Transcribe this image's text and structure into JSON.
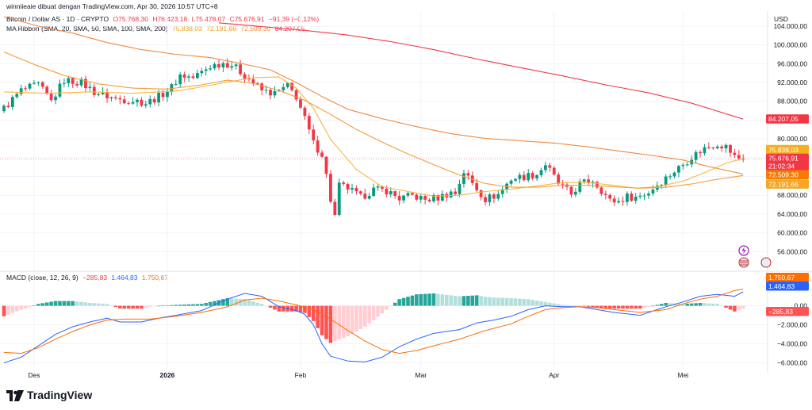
{
  "header": {
    "published": "winniieaie dibuat dengan TradingView.com, Apr 30, 2026 10:57 UTC+8",
    "symbol": "Bitcoin / Dollar AS · 1D · CRYPTO",
    "open": "O75.768,30",
    "high": "H76.423,18",
    "low": "L75.478,07",
    "close": "C75.676,91",
    "change": "−91,39 (−0,12%)",
    "ma_label": "MA Ribbon (SMA, 20, SMA, 50, SMA, 100, SMA, 200)",
    "ma_values": [
      "75.838,03",
      "72.191,66",
      "72.509,30",
      "84.207,05"
    ],
    "macd_label": "MACD (close, 12, 26, 9)",
    "macd_values": [
      "−285,83",
      "1.464,83",
      "1.750,67"
    ]
  },
  "axis_unit": "USD",
  "brand": "TradingView",
  "colors": {
    "up": "#089981",
    "down": "#f23645",
    "sma20": "#f5b642",
    "sma50": "#f59c34",
    "sma100": "#f0893e",
    "sma200": "#f23645",
    "macd": "#2962ff",
    "signal": "#ff6d00",
    "hist_up_strong": "#26a69a",
    "hist_up_weak": "#b2dfdb",
    "hist_down_strong": "#ff5252",
    "hist_down_weak": "#ffcdd2"
  },
  "chart_data": [
    {
      "type": "candlestick",
      "title": "Bitcoin / Dollar AS · 1D · CRYPTO",
      "x_labels": [
        "Des",
        "2026",
        "Feb",
        "Mar",
        "Apr",
        "Mei"
      ],
      "y_ticks": [
        56000,
        60000,
        64000,
        68000,
        72000,
        76000,
        80000,
        84000,
        88000,
        92000,
        96000,
        100000,
        104000
      ],
      "y_tick_labels": [
        "56.000,00",
        "60.000,00",
        "64.000,00",
        "68.000,00",
        "72.000,00",
        "76.000,00",
        "80.000,00",
        "84.000,00",
        "88.000,00",
        "92.000,00",
        "96.000,00",
        "100.000,00",
        "104.000,00"
      ],
      "ylim": [
        52500,
        107200
      ],
      "first_date": "2025-11-24",
      "last_date": "2026-04-30",
      "close_path": [
        [
          0,
          86500
        ],
        [
          4,
          90300
        ],
        [
          8,
          91500
        ],
        [
          11,
          88000
        ],
        [
          14,
          92500
        ],
        [
          18,
          92000
        ],
        [
          21,
          90000
        ],
        [
          26,
          88500
        ],
        [
          31,
          88100
        ],
        [
          33,
          87600
        ],
        [
          36,
          89000
        ],
        [
          39,
          91000
        ],
        [
          41,
          93600
        ],
        [
          44,
          93000
        ],
        [
          48,
          95500
        ],
        [
          51,
          96200
        ],
        [
          53,
          95800
        ],
        [
          57,
          92800
        ],
        [
          60,
          90300
        ],
        [
          63,
          89600
        ],
        [
          66,
          91200
        ],
        [
          68,
          89000
        ],
        [
          70,
          84200
        ],
        [
          72,
          79000
        ],
        [
          74,
          76800
        ],
        [
          75,
          72200
        ],
        [
          76,
          67000
        ],
        [
          77,
          63500
        ],
        [
          78,
          70000
        ],
        [
          80,
          69500
        ],
        [
          83,
          67500
        ],
        [
          86,
          69200
        ],
        [
          89,
          69000
        ],
        [
          92,
          67300
        ],
        [
          95,
          67900
        ],
        [
          98,
          67000
        ],
        [
          101,
          67500
        ],
        [
          104,
          68600
        ],
        [
          105,
          68400
        ],
        [
          107,
          73000
        ],
        [
          109,
          70500
        ],
        [
          112,
          67200
        ],
        [
          115,
          68200
        ],
        [
          118,
          71500
        ],
        [
          121,
          72000
        ],
        [
          124,
          72500
        ],
        [
          126,
          74600
        ],
        [
          129,
          70500
        ],
        [
          132,
          68200
        ],
        [
          134,
          70400
        ],
        [
          137,
          71200
        ],
        [
          139,
          69100
        ],
        [
          141,
          66800
        ],
        [
          143,
          66700
        ],
        [
          145,
          67700
        ],
        [
          147,
          67600
        ],
        [
          150,
          68600
        ],
        [
          152,
          70300
        ],
        [
          155,
          72400
        ],
        [
          158,
          74600
        ],
        [
          160,
          76200
        ],
        [
          163,
          78000
        ],
        [
          166,
          79000
        ],
        [
          168,
          78300
        ],
        [
          170,
          76200
        ],
        [
          172,
          75676.91
        ]
      ],
      "series": [
        {
          "name": "SMA 20",
          "last": 75838.03,
          "path": [
            [
              0,
              90000
            ],
            [
              10,
              89700
            ],
            [
              20,
              90000
            ],
            [
              30,
              89700
            ],
            [
              40,
              90200
            ],
            [
              45,
              90900
            ],
            [
              52,
              92100
            ],
            [
              58,
              93000
            ],
            [
              64,
              93200
            ],
            [
              68,
              90800
            ],
            [
              72,
              86500
            ],
            [
              76,
              79900
            ],
            [
              82,
              73500
            ],
            [
              88,
              69800
            ],
            [
              94,
              68800
            ],
            [
              100,
              67800
            ],
            [
              106,
              68000
            ],
            [
              112,
              68800
            ],
            [
              118,
              69300
            ],
            [
              124,
              70000
            ],
            [
              130,
              70700
            ],
            [
              136,
              70700
            ],
            [
              142,
              70100
            ],
            [
              147,
              69500
            ],
            [
              152,
              69800
            ],
            [
              158,
              71000
            ],
            [
              163,
              72800
            ],
            [
              168,
              74800
            ],
            [
              172,
              75838.03
            ]
          ]
        },
        {
          "name": "SMA 50",
          "last": 72191.66,
          "path": [
            [
              0,
              98500
            ],
            [
              8,
              95500
            ],
            [
              14,
              93500
            ],
            [
              22,
              91700
            ],
            [
              30,
              90800
            ],
            [
              38,
              90600
            ],
            [
              46,
              91500
            ],
            [
              52,
              92500
            ],
            [
              58,
              91800
            ],
            [
              64,
              90300
            ],
            [
              70,
              88200
            ],
            [
              76,
              85200
            ],
            [
              82,
              82000
            ],
            [
              88,
              79300
            ],
            [
              94,
              76800
            ],
            [
              100,
              74500
            ],
            [
              106,
              72300
            ],
            [
              112,
              70500
            ],
            [
              118,
              69700
            ],
            [
              124,
              69700
            ],
            [
              130,
              70100
            ],
            [
              136,
              70100
            ],
            [
              142,
              69800
            ],
            [
              148,
              69500
            ],
            [
              154,
              69700
            ],
            [
              160,
              70400
            ],
            [
              166,
              71400
            ],
            [
              172,
              72191.66
            ]
          ]
        },
        {
          "name": "SMA 100",
          "last": 72509.3,
          "path": [
            [
              0,
              106000
            ],
            [
              8,
              104000
            ],
            [
              16,
              102500
            ],
            [
              24,
              100500
            ],
            [
              32,
              99000
            ],
            [
              40,
              98000
            ],
            [
              48,
              97300
            ],
            [
              56,
              95900
            ],
            [
              62,
              94700
            ],
            [
              68,
              92000
            ],
            [
              74,
              89000
            ],
            [
              80,
              86300
            ],
            [
              88,
              84300
            ],
            [
              96,
              82600
            ],
            [
              104,
              81100
            ],
            [
              112,
              80100
            ],
            [
              120,
              79600
            ],
            [
              128,
              79100
            ],
            [
              136,
              78300
            ],
            [
              144,
              77300
            ],
            [
              152,
              76300
            ],
            [
              158,
              75500
            ],
            [
              164,
              74100
            ],
            [
              172,
              72509.3
            ]
          ]
        },
        {
          "name": "SMA 200",
          "last": 84207.05,
          "path": [
            [
              50,
              104700
            ],
            [
              60,
              103900
            ],
            [
              70,
              103100
            ],
            [
              80,
              102100
            ],
            [
              90,
              100700
            ],
            [
              100,
              99000
            ],
            [
              110,
              97000
            ],
            [
              120,
              95200
            ],
            [
              130,
              93400
            ],
            [
              140,
              91500
            ],
            [
              150,
              89800
            ],
            [
              160,
              87600
            ],
            [
              172,
              84207.05
            ]
          ]
        }
      ],
      "price_labels": {
        "sma200": "84.207,05",
        "sma20": "75.838,03",
        "close": "75.676,91",
        "countdown": "21:02:34",
        "sma100": "72.509,30",
        "sma50": "72.191,66"
      }
    },
    {
      "type": "line",
      "title": "MACD (close, 12, 26, 9)",
      "y_ticks": [
        -6000,
        -4000,
        -2000,
        0
      ],
      "y_tick_labels": [
        "−6.000,00",
        "−4.000,00",
        "−2.000,00",
        "0,00"
      ],
      "ylim": [
        -6700,
        2300
      ],
      "series": [
        {
          "name": "MACD",
          "last": 1464.83,
          "path": [
            [
              0,
              -6000
            ],
            [
              4,
              -5400
            ],
            [
              8,
              -4200
            ],
            [
              12,
              -3000
            ],
            [
              16,
              -2200
            ],
            [
              20,
              -1700
            ],
            [
              24,
              -1300
            ],
            [
              27,
              -1700
            ],
            [
              32,
              -1700
            ],
            [
              36,
              -1300
            ],
            [
              40,
              -1000
            ],
            [
              46,
              -500
            ],
            [
              52,
              700
            ],
            [
              56,
              1300
            ],
            [
              60,
              1000
            ],
            [
              64,
              -100
            ],
            [
              68,
              -500
            ],
            [
              70,
              -900
            ],
            [
              72,
              -2000
            ],
            [
              74,
              -4000
            ],
            [
              76,
              -5300
            ],
            [
              80,
              -5800
            ],
            [
              84,
              -5900
            ],
            [
              88,
              -5400
            ],
            [
              92,
              -4300
            ],
            [
              96,
              -3500
            ],
            [
              100,
              -2900
            ],
            [
              106,
              -2500
            ],
            [
              110,
              -1800
            ],
            [
              114,
              -1500
            ],
            [
              118,
              -1100
            ],
            [
              122,
              -400
            ],
            [
              126,
              0
            ],
            [
              130,
              -100
            ],
            [
              134,
              -100
            ],
            [
              138,
              -400
            ],
            [
              142,
              -700
            ],
            [
              146,
              -900
            ],
            [
              148,
              -1000
            ],
            [
              150,
              -700
            ],
            [
              154,
              -100
            ],
            [
              158,
              400
            ],
            [
              162,
              1000
            ],
            [
              166,
              1200
            ],
            [
              170,
              1000
            ],
            [
              172,
              1464.83
            ]
          ]
        },
        {
          "name": "Signal",
          "last": 1750.67,
          "path": [
            [
              0,
              -4900
            ],
            [
              4,
              -5000
            ],
            [
              8,
              -4400
            ],
            [
              12,
              -3500
            ],
            [
              16,
              -2700
            ],
            [
              20,
              -2000
            ],
            [
              24,
              -1500
            ],
            [
              28,
              -1400
            ],
            [
              34,
              -1400
            ],
            [
              40,
              -1100
            ],
            [
              46,
              -700
            ],
            [
              52,
              -100
            ],
            [
              56,
              600
            ],
            [
              60,
              800
            ],
            [
              64,
              500
            ],
            [
              68,
              100
            ],
            [
              72,
              -400
            ],
            [
              76,
              -1400
            ],
            [
              80,
              -2600
            ],
            [
              84,
              -3700
            ],
            [
              88,
              -4600
            ],
            [
              92,
              -5000
            ],
            [
              96,
              -4700
            ],
            [
              100,
              -4200
            ],
            [
              106,
              -3500
            ],
            [
              112,
              -2600
            ],
            [
              118,
              -1900
            ],
            [
              122,
              -1100
            ],
            [
              126,
              -400
            ],
            [
              130,
              -200
            ],
            [
              134,
              -100
            ],
            [
              138,
              -200
            ],
            [
              142,
              -400
            ],
            [
              148,
              -700
            ],
            [
              154,
              -400
            ],
            [
              158,
              200
            ],
            [
              162,
              700
            ],
            [
              166,
              1000
            ],
            [
              170,
              1600
            ],
            [
              172,
              1750.67
            ]
          ]
        }
      ],
      "histogram_last": -285.83,
      "price_labels": {
        "signal": "1.750,67",
        "macd": "1.464,83",
        "hist": "−285,83"
      }
    }
  ]
}
